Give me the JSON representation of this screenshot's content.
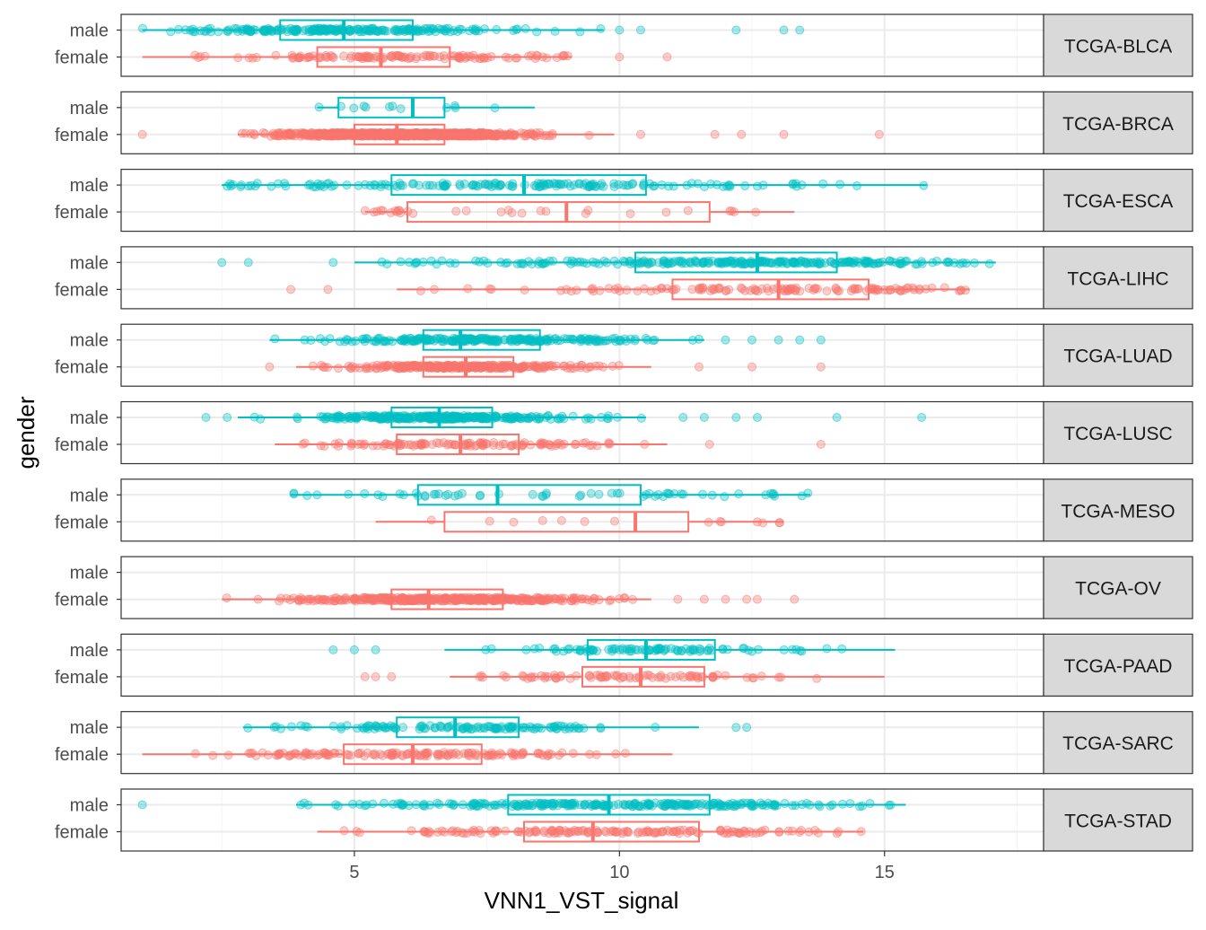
{
  "chart_data": {
    "type": "boxplot",
    "xlabel": "VNN1_VST_signal",
    "ylabel": "gender",
    "x_ticks": [
      5,
      10,
      15
    ],
    "xlim": [
      0.6,
      18
    ],
    "group_levels": [
      "male",
      "female"
    ],
    "colors": {
      "male": "#00BFC4",
      "female": "#F8766D"
    },
    "facet_strip_fill": "#D9D9D9",
    "panels": [
      {
        "cohort": "TCGA-BLCA",
        "male": {
          "min": 1.0,
          "q1": 3.6,
          "median": 4.8,
          "q3": 6.1,
          "max": 9.7,
          "outliers": [
            10.0,
            10.4,
            12.2,
            13.1,
            13.4
          ],
          "n_points": 220
        },
        "female": {
          "min": 1.0,
          "q1": 4.3,
          "median": 5.5,
          "q3": 6.8,
          "max": 9.1,
          "outliers": [
            10.0,
            10.9
          ],
          "n_points": 120
        }
      },
      {
        "cohort": "TCGA-BRCA",
        "male": {
          "min": 4.3,
          "q1": 4.7,
          "median": 6.1,
          "q3": 6.7,
          "max": 8.4,
          "outliers": [],
          "n_points": 12
        },
        "female": {
          "min": 2.8,
          "q1": 5.0,
          "median": 5.8,
          "q3": 6.7,
          "max": 9.9,
          "outliers": [
            1.0,
            10.4,
            11.8,
            12.3,
            13.1,
            14.9
          ],
          "n_points": 900
        }
      },
      {
        "cohort": "TCGA-ESCA",
        "male": {
          "min": 2.5,
          "q1": 5.7,
          "median": 8.2,
          "q3": 10.5,
          "max": 15.8,
          "outliers": [],
          "n_points": 160
        },
        "female": {
          "min": 5.2,
          "q1": 6.0,
          "median": 9.0,
          "q3": 11.7,
          "max": 13.3,
          "outliers": [],
          "n_points": 30
        }
      },
      {
        "cohort": "TCGA-LIHC",
        "male": {
          "min": 5.0,
          "q1": 10.3,
          "median": 12.6,
          "q3": 14.1,
          "max": 17.1,
          "outliers": [
            2.5,
            3.0,
            4.6
          ],
          "n_points": 250
        },
        "female": {
          "min": 5.8,
          "q1": 11.0,
          "median": 13.0,
          "q3": 14.7,
          "max": 16.6,
          "outliers": [
            3.8,
            4.5
          ],
          "n_points": 120
        }
      },
      {
        "cohort": "TCGA-LUAD",
        "male": {
          "min": 3.4,
          "q1": 6.3,
          "median": 7.0,
          "q3": 8.5,
          "max": 11.6,
          "outliers": [
            12.0,
            12.5,
            13.0,
            13.4,
            13.8
          ],
          "n_points": 240
        },
        "female": {
          "min": 3.9,
          "q1": 6.3,
          "median": 7.1,
          "q3": 8.0,
          "max": 10.6,
          "outliers": [
            3.4,
            11.5,
            12.5,
            13.8
          ],
          "n_points": 280
        }
      },
      {
        "cohort": "TCGA-LUSC",
        "male": {
          "min": 2.8,
          "q1": 5.7,
          "median": 6.6,
          "q3": 7.6,
          "max": 10.5,
          "outliers": [
            2.2,
            2.6,
            11.2,
            11.6,
            12.2,
            12.6,
            14.1,
            15.7
          ],
          "n_points": 300
        },
        "female": {
          "min": 3.5,
          "q1": 5.8,
          "median": 7.0,
          "q3": 8.1,
          "max": 10.9,
          "outliers": [
            11.7,
            13.8
          ],
          "n_points": 110
        }
      },
      {
        "cohort": "TCGA-MESO",
        "male": {
          "min": 3.8,
          "q1": 6.2,
          "median": 7.7,
          "q3": 10.4,
          "max": 13.6,
          "outliers": [],
          "n_points": 60
        },
        "female": {
          "min": 5.4,
          "q1": 6.7,
          "median": 10.3,
          "q3": 11.3,
          "max": 13.1,
          "outliers": [],
          "n_points": 14
        }
      },
      {
        "cohort": "TCGA-OV",
        "male": null,
        "female": {
          "min": 2.5,
          "q1": 5.7,
          "median": 6.4,
          "q3": 7.8,
          "max": 10.6,
          "outliers": [
            11.1,
            11.6,
            12.0,
            12.4,
            12.6,
            13.3
          ],
          "n_points": 380
        }
      },
      {
        "cohort": "TCGA-PAAD",
        "male": {
          "min": 6.7,
          "q1": 9.4,
          "median": 10.5,
          "q3": 11.8,
          "max": 15.2,
          "outliers": [
            4.6,
            5.0,
            5.4
          ],
          "n_points": 90
        },
        "female": {
          "min": 6.8,
          "q1": 9.3,
          "median": 10.4,
          "q3": 11.6,
          "max": 15.0,
          "outliers": [
            5.2,
            5.4,
            5.7
          ],
          "n_points": 80
        }
      },
      {
        "cohort": "TCGA-SARC",
        "male": {
          "min": 2.9,
          "q1": 5.8,
          "median": 6.9,
          "q3": 8.1,
          "max": 11.5,
          "outliers": [
            12.2,
            12.4
          ],
          "n_points": 120
        },
        "female": {
          "min": 1.0,
          "q1": 4.8,
          "median": 6.1,
          "q3": 7.4,
          "max": 11.0,
          "outliers": [],
          "n_points": 140
        }
      },
      {
        "cohort": "TCGA-STAD",
        "male": {
          "min": 3.9,
          "q1": 7.9,
          "median": 9.8,
          "q3": 11.7,
          "max": 15.4,
          "outliers": [
            1.0
          ],
          "n_points": 250
        },
        "female": {
          "min": 4.3,
          "q1": 8.2,
          "median": 9.5,
          "q3": 11.5,
          "max": 14.6,
          "outliers": [],
          "n_points": 150
        }
      }
    ]
  }
}
